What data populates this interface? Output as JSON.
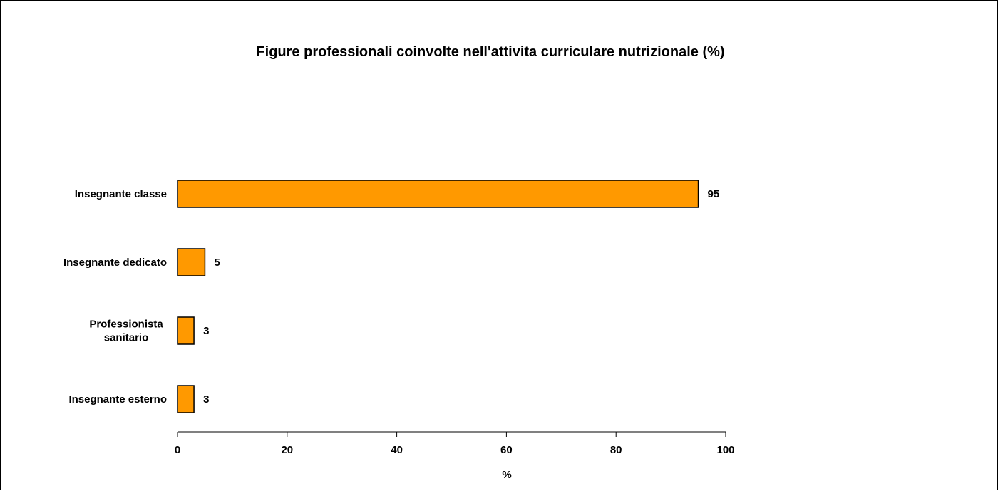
{
  "chart_data": {
    "type": "bar",
    "orientation": "horizontal",
    "title": "Figure professionali coinvolte nell'attivita curriculare nutrizionale (%)",
    "xlabel": "%",
    "ylabel": "",
    "categories": [
      [
        "Insegnante classe"
      ],
      [
        "Insegnante dedicato"
      ],
      [
        "Professionista",
        "sanitario"
      ],
      [
        "Insegnante esterno"
      ]
    ],
    "values": [
      95,
      5,
      3,
      3
    ],
    "xlim": [
      0,
      100
    ],
    "xticks": [
      0,
      20,
      40,
      60,
      80,
      100
    ],
    "grid": false,
    "legend": "none",
    "bar_color": "#FF9900",
    "bar_edge_color": "#000000"
  }
}
